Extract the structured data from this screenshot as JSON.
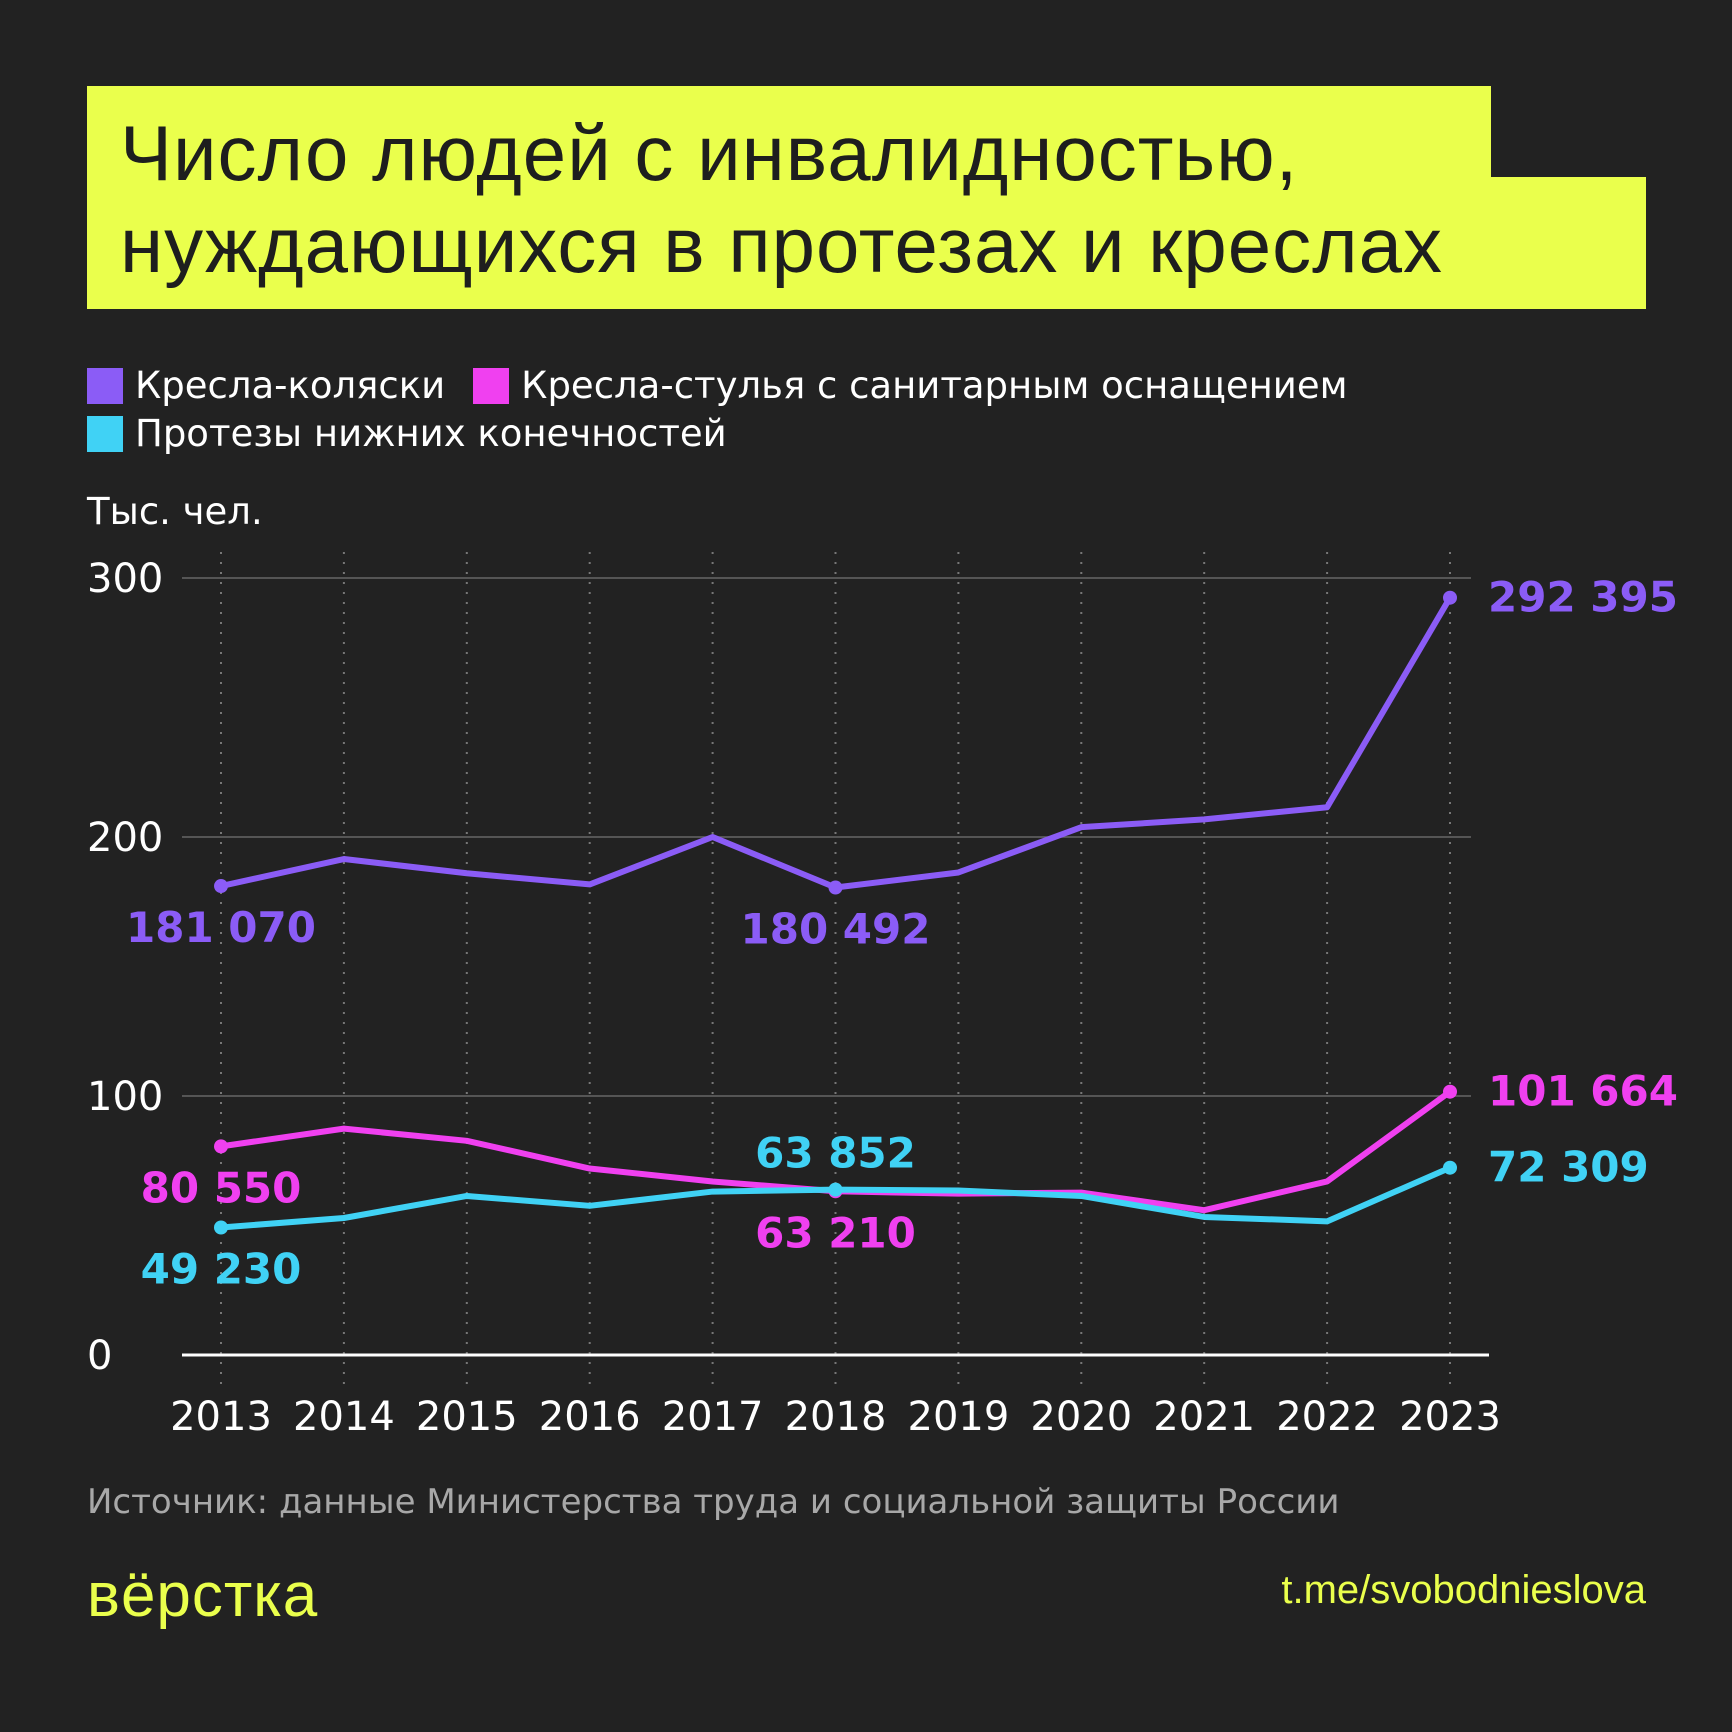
{
  "title": {
    "line1": "Число людей с инвалидностью,",
    "line2": "нуждающихся в протезах и креслах"
  },
  "colors": {
    "background": "#222222",
    "accent": "#eaff4c"
  },
  "chart_data": {
    "type": "line",
    "ylabel": "Тыс. чел.",
    "ylim": [
      0,
      300
    ],
    "yticks": [
      "0",
      "100",
      "200",
      "300"
    ],
    "grid": true,
    "legend_position": "top-left",
    "x": [
      "2013",
      "2014",
      "2015",
      "2016",
      "2017",
      "2018",
      "2019",
      "2020",
      "2021",
      "2022",
      "2023"
    ],
    "series": [
      {
        "name": "Кресла-коляски",
        "color": "#8b5cf6",
        "values": [
          181.07,
          191.5,
          186.0,
          181.7,
          200.0,
          180.492,
          186.3,
          203.8,
          206.8,
          211.5,
          292.395
        ],
        "labels": [
          {
            "index": 0,
            "text": "181 070",
            "pos": "below"
          },
          {
            "index": 5,
            "text": "180 492",
            "pos": "below"
          },
          {
            "index": 10,
            "text": "292 395",
            "pos": "right"
          }
        ]
      },
      {
        "name": "Кресла-стулья с санитарным оснащением",
        "color": "#f040f0",
        "values": [
          80.55,
          87.4,
          82.7,
          72.0,
          67.0,
          63.21,
          62.3,
          62.7,
          55.9,
          67.0,
          101.664
        ],
        "labels": [
          {
            "index": 0,
            "text": "80 550",
            "pos": "below"
          },
          {
            "index": 5,
            "text": "63 210",
            "pos": "below"
          },
          {
            "index": 10,
            "text": "101 664",
            "pos": "right"
          }
        ]
      },
      {
        "name": "Протезы нижних конечностей",
        "color": "#40d2f5",
        "values": [
          49.23,
          52.9,
          61.4,
          57.6,
          63.1,
          63.852,
          63.5,
          61.4,
          53.3,
          51.6,
          72.309
        ],
        "labels": [
          {
            "index": 0,
            "text": "49 230",
            "pos": "below"
          },
          {
            "index": 5,
            "text": "63 852",
            "pos": "above"
          },
          {
            "index": 10,
            "text": "72 309",
            "pos": "right"
          }
        ]
      }
    ]
  },
  "source": "Источник: данные Министерства труда и социальной защиты России",
  "logo": "вёрстка",
  "url": "t.me/svobodnieslova"
}
